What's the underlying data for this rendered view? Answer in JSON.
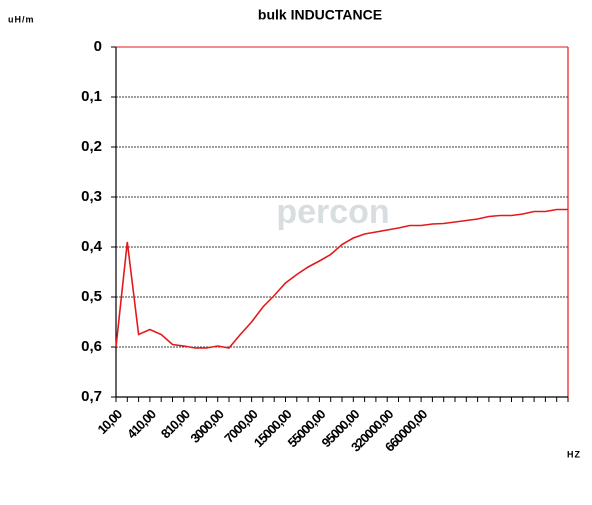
{
  "chart_data": {
    "type": "line",
    "title": "bulk INDUCTANCE",
    "y_label": "uH/m",
    "x_label": "HZ",
    "watermark": "percon",
    "categories": [
      "10,00",
      null,
      null,
      "410,00",
      null,
      null,
      "810,00",
      null,
      null,
      "3000,00",
      null,
      null,
      "7000,00",
      null,
      null,
      "15000,00",
      null,
      null,
      "55000,00",
      null,
      null,
      "95000,00",
      null,
      null,
      "320000,00",
      null,
      null,
      "660000,00",
      null,
      null,
      null,
      null,
      null,
      null,
      null,
      null,
      null,
      null,
      null,
      null,
      null
    ],
    "series": [
      {
        "color": "#e31a1c",
        "values": [
          0.6,
          0.39,
          0.575,
          0.565,
          0.575,
          0.595,
          0.598,
          0.602,
          0.602,
          0.598,
          0.602,
          0.575,
          0.55,
          0.52,
          0.497,
          0.472,
          0.455,
          0.44,
          0.428,
          0.415,
          0.395,
          0.382,
          0.374,
          0.37,
          0.366,
          0.362,
          0.357,
          0.357,
          0.354,
          0.353,
          0.35,
          0.347,
          0.344,
          0.339,
          0.337,
          0.337,
          0.334,
          0.329,
          0.329,
          0.325,
          0.325
        ]
      }
    ],
    "ylim": [
      0,
      0.7
    ],
    "y_inverted": true,
    "yticks": [
      0,
      {
        "value": 0.1,
        "label": "0,1"
      },
      {
        "value": 0.2,
        "label": "0,2"
      },
      {
        "value": 0.3,
        "label": "0,3"
      },
      {
        "value": 0.4,
        "label": "0,4"
      },
      {
        "value": 0.5,
        "label": "0,5"
      },
      {
        "value": 0.6,
        "label": "0,6"
      },
      {
        "value": 0.7,
        "label": "0,7"
      }
    ],
    "grid": true
  }
}
